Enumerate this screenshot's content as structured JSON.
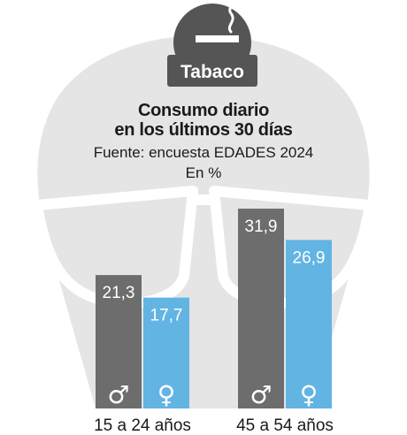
{
  "header": {
    "badge_label": "Tabaco",
    "badge_icon": "cigarette-icon",
    "title_line1": "Consumo diario",
    "title_line2": "en los últimos 30 días",
    "source": "Fuente: encuesta EDADES 2024",
    "unit": "En %"
  },
  "colors": {
    "male": "#6d6d6d",
    "female": "#62b4e3",
    "face": "#e5e5e5",
    "badge": "#555555"
  },
  "chart_data": {
    "type": "bar",
    "categories": [
      "15 a 24 años",
      "45 a 54 años"
    ],
    "series": [
      {
        "name": "♂",
        "values": [
          21.3,
          31.9
        ],
        "labels": [
          "21,3",
          "31,9"
        ],
        "color": "#6d6d6d"
      },
      {
        "name": "♀",
        "values": [
          17.7,
          26.9
        ],
        "labels": [
          "17,7",
          "26,9"
        ],
        "color": "#62b4e3"
      }
    ],
    "ylim": [
      0,
      35
    ],
    "grid": false,
    "legend": "none"
  }
}
